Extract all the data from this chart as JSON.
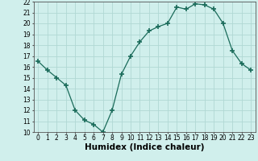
{
  "title": "",
  "xlabel": "Humidex (Indice chaleur)",
  "ylabel": "",
  "x": [
    0,
    1,
    2,
    3,
    4,
    5,
    6,
    7,
    8,
    9,
    10,
    11,
    12,
    13,
    14,
    15,
    16,
    17,
    18,
    19,
    20,
    21,
    22,
    23
  ],
  "y": [
    16.5,
    15.7,
    15.0,
    14.3,
    12.0,
    11.1,
    10.7,
    10.0,
    12.0,
    15.3,
    17.0,
    18.3,
    19.3,
    19.7,
    20.0,
    21.5,
    21.3,
    21.8,
    21.7,
    21.3,
    20.0,
    17.5,
    16.3,
    15.7
  ],
  "ylim": [
    10,
    22
  ],
  "xlim": [
    -0.5,
    23.5
  ],
  "yticks": [
    10,
    11,
    12,
    13,
    14,
    15,
    16,
    17,
    18,
    19,
    20,
    21,
    22
  ],
  "xticks": [
    0,
    1,
    2,
    3,
    4,
    5,
    6,
    7,
    8,
    9,
    10,
    11,
    12,
    13,
    14,
    15,
    16,
    17,
    18,
    19,
    20,
    21,
    22,
    23
  ],
  "line_color": "#1a6b5a",
  "marker": "+",
  "marker_size": 4,
  "bg_color": "#d0efec",
  "grid_color": "#b0d8d4",
  "tick_fontsize": 5.5,
  "xlabel_fontsize": 7.5
}
